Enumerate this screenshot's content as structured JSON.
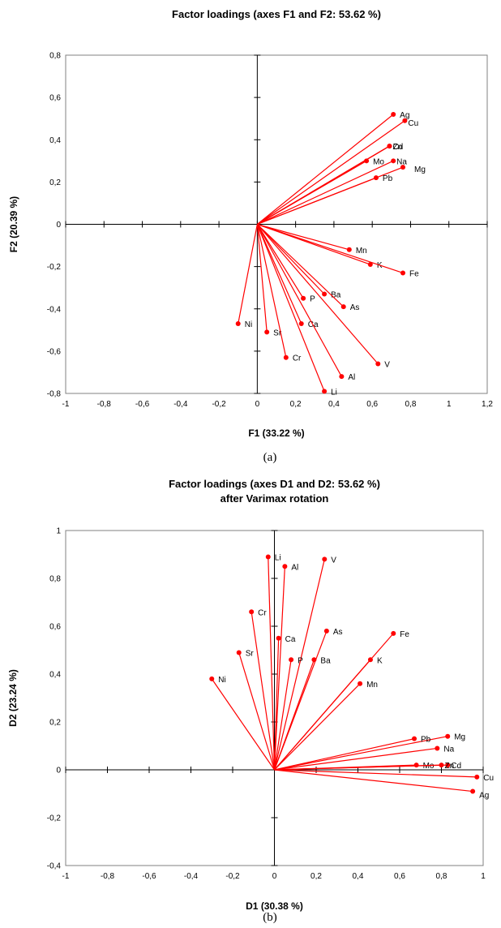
{
  "colors": {
    "series": "#ff0000",
    "axis": "#000000",
    "frame": "#808080"
  },
  "chart_data": [
    {
      "type": "scatter",
      "title": "Factor loadings (axes F1 and F2: 53.62 %)",
      "subtitle": "",
      "xlabel": "F1 (33.22 %)",
      "ylabel": "F2 (20.39 %)",
      "caption": "(a)",
      "xlim": [
        -1,
        1.2
      ],
      "ylim": [
        -0.8,
        0.8
      ],
      "xticks": [
        -1,
        -0.8,
        -0.6,
        -0.4,
        -0.2,
        0,
        0.2,
        0.4,
        0.6,
        0.8,
        1,
        1.2
      ],
      "xtick_labels": [
        "-1",
        "-0,8",
        "-0,6",
        "-0,4",
        "-0,2",
        "0",
        "0,2",
        "0,4",
        "0,6",
        "0,8",
        "1",
        "1,2"
      ],
      "yticks": [
        -0.8,
        -0.6,
        -0.4,
        -0.2,
        0,
        0.2,
        0.4,
        0.6,
        0.8
      ],
      "ytick_labels": [
        "-0,8",
        "-0,6",
        "-0,4",
        "-0,2",
        "0",
        "0,2",
        "0,4",
        "0,6",
        "0,8"
      ],
      "grid": false,
      "vectors_from_origin": true,
      "points": [
        {
          "label": "Ag",
          "x": 0.71,
          "y": 0.52
        },
        {
          "label": "Cu",
          "x": 0.77,
          "y": 0.49
        },
        {
          "label": "Cd",
          "x": 0.69,
          "y": 0.37
        },
        {
          "label": "Zn",
          "x": 0.69,
          "y": 0.37
        },
        {
          "label": "Mo",
          "x": 0.57,
          "y": 0.3
        },
        {
          "label": "Na",
          "x": 0.71,
          "y": 0.3
        },
        {
          "label": "Mg",
          "x": 0.76,
          "y": 0.27
        },
        {
          "label": "Pb",
          "x": 0.62,
          "y": 0.22
        },
        {
          "label": "Mn",
          "x": 0.48,
          "y": -0.12
        },
        {
          "label": "K",
          "x": 0.59,
          "y": -0.19
        },
        {
          "label": "Fe",
          "x": 0.76,
          "y": -0.23
        },
        {
          "label": "Ba",
          "x": 0.35,
          "y": -0.33
        },
        {
          "label": "P",
          "x": 0.24,
          "y": -0.35
        },
        {
          "label": "As",
          "x": 0.45,
          "y": -0.39
        },
        {
          "label": "Ca",
          "x": 0.23,
          "y": -0.47
        },
        {
          "label": "Ni",
          "x": -0.1,
          "y": -0.47
        },
        {
          "label": "Sr",
          "x": 0.05,
          "y": -0.51
        },
        {
          "label": "Cr",
          "x": 0.15,
          "y": -0.63
        },
        {
          "label": "V",
          "x": 0.63,
          "y": -0.66
        },
        {
          "label": "Al",
          "x": 0.44,
          "y": -0.72
        },
        {
          "label": "Li",
          "x": 0.35,
          "y": -0.79
        }
      ]
    },
    {
      "type": "scatter",
      "title": "Factor loadings (axes D1 and D2: 53.62 %)",
      "subtitle": "after Varimax rotation",
      "xlabel": "D1 (30.38 %)",
      "ylabel": "D2 (23.24 %)",
      "caption": "(b)",
      "xlim": [
        -1,
        1
      ],
      "ylim": [
        -0.4,
        1
      ],
      "xticks": [
        -1,
        -0.8,
        -0.6,
        -0.4,
        -0.2,
        0,
        0.2,
        0.4,
        0.6,
        0.8,
        1
      ],
      "xtick_labels": [
        "-1",
        "-0,8",
        "-0,6",
        "-0,4",
        "-0,2",
        "0",
        "0,2",
        "0,4",
        "0,6",
        "0,8",
        "1"
      ],
      "yticks": [
        -0.4,
        -0.2,
        0,
        0.2,
        0.4,
        0.6,
        0.8,
        1
      ],
      "ytick_labels": [
        "-0,4",
        "-0,2",
        "0",
        "0,2",
        "0,4",
        "0,6",
        "0,8",
        "1"
      ],
      "grid": false,
      "vectors_from_origin": true,
      "points": [
        {
          "label": "Li",
          "x": -0.03,
          "y": 0.89
        },
        {
          "label": "Al",
          "x": 0.05,
          "y": 0.85
        },
        {
          "label": "V",
          "x": 0.24,
          "y": 0.88
        },
        {
          "label": "Cr",
          "x": -0.11,
          "y": 0.66
        },
        {
          "label": "Fe",
          "x": 0.57,
          "y": 0.57
        },
        {
          "label": "As",
          "x": 0.25,
          "y": 0.58
        },
        {
          "label": "Ca",
          "x": 0.02,
          "y": 0.55
        },
        {
          "label": "P",
          "x": 0.08,
          "y": 0.46
        },
        {
          "label": "Ba",
          "x": 0.19,
          "y": 0.46
        },
        {
          "label": "K",
          "x": 0.46,
          "y": 0.46
        },
        {
          "label": "Sr",
          "x": -0.17,
          "y": 0.49
        },
        {
          "label": "Ni",
          "x": -0.3,
          "y": 0.38
        },
        {
          "label": "Mn",
          "x": 0.41,
          "y": 0.36
        },
        {
          "label": "Mg",
          "x": 0.83,
          "y": 0.14
        },
        {
          "label": "Pb",
          "x": 0.67,
          "y": 0.13
        },
        {
          "label": "Na",
          "x": 0.78,
          "y": 0.09
        },
        {
          "label": "Mo",
          "x": 0.68,
          "y": 0.02
        },
        {
          "label": "Cd",
          "x": 0.83,
          "y": 0.02
        },
        {
          "label": "Zn",
          "x": 0.8,
          "y": 0.02
        },
        {
          "label": "Cu",
          "x": 0.97,
          "y": -0.03
        },
        {
          "label": "Ag",
          "x": 0.95,
          "y": -0.09
        }
      ]
    }
  ]
}
